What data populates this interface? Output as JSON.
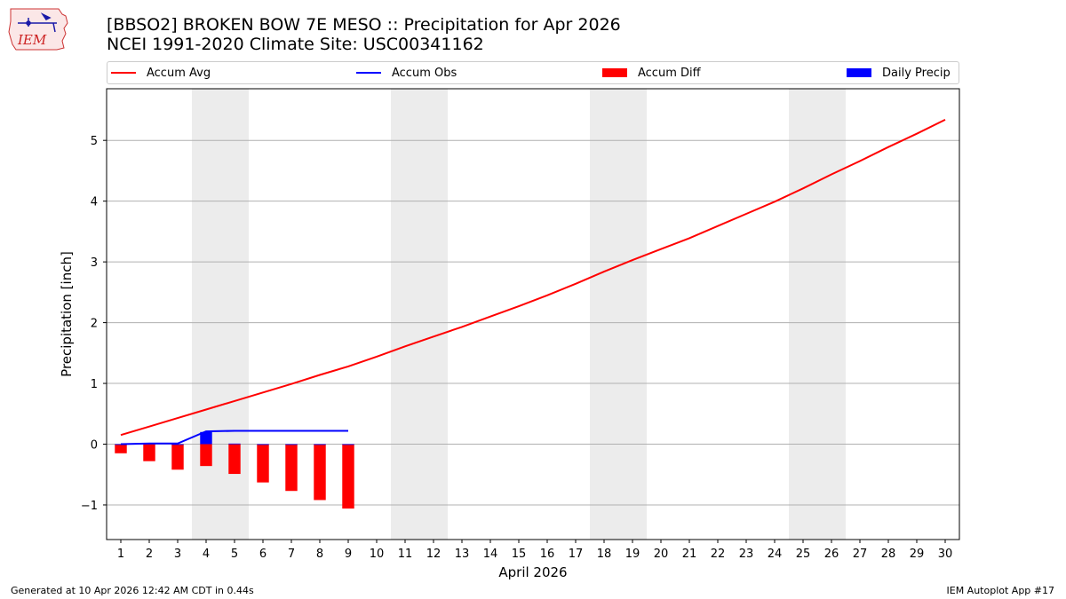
{
  "title": {
    "line1": "[BBSO2] BROKEN BOW 7E MESO :: Precipitation for Apr 2026",
    "line2": "NCEI 1991-2020 Climate Site: USC00341162"
  },
  "logo": {
    "text": "IEM"
  },
  "footer": {
    "left": "Generated at 10 Apr 2026 12:42 AM CDT in 0.44s",
    "right": "IEM Autoplot App #17"
  },
  "colors": {
    "accum_avg": "#ff0000",
    "accum_obs": "#0000ff",
    "accum_diff": "#ff0000",
    "daily_precip": "#0000ff",
    "weekend_shade": "#ececec",
    "grid": "#b0b0b0"
  },
  "chart_data": {
    "type": "line",
    "title": "[BBSO2] BROKEN BOW 7E MESO :: Precipitation for Apr 2026",
    "xlabel": "April 2026",
    "ylabel": "Precipitation [inch]",
    "xlim": [
      0.5,
      30.5
    ],
    "ylim": [
      -1.57,
      5.85
    ],
    "yticks": [
      -1,
      0,
      1,
      2,
      3,
      4,
      5
    ],
    "ytick_labels": [
      "−1",
      "0",
      "1",
      "2",
      "3",
      "4",
      "5"
    ],
    "x": [
      1,
      2,
      3,
      4,
      5,
      6,
      7,
      8,
      9,
      10,
      11,
      12,
      13,
      14,
      15,
      16,
      17,
      18,
      19,
      20,
      21,
      22,
      23,
      24,
      25,
      26,
      27,
      28,
      29,
      30
    ],
    "weekend_spans": [
      [
        3.5,
        5.5
      ],
      [
        10.5,
        12.5
      ],
      [
        17.5,
        19.5
      ],
      [
        24.5,
        26.5
      ]
    ],
    "grid": "y",
    "legend_location": "top",
    "legend": [
      "Accum Avg",
      "Accum Obs",
      "Accum Diff",
      "Daily Precip"
    ],
    "series": [
      {
        "name": "Accum Avg",
        "kind": "line",
        "x": [
          1,
          2,
          3,
          4,
          5,
          6,
          7,
          8,
          9,
          10,
          11,
          12,
          13,
          14,
          15,
          16,
          17,
          18,
          19,
          20,
          21,
          22,
          23,
          24,
          25,
          26,
          27,
          28,
          29,
          30
        ],
        "values": [
          0.15,
          0.29,
          0.43,
          0.57,
          0.71,
          0.85,
          0.99,
          1.14,
          1.28,
          1.44,
          1.61,
          1.77,
          1.93,
          2.1,
          2.27,
          2.45,
          2.64,
          2.84,
          3.03,
          3.21,
          3.39,
          3.59,
          3.79,
          3.99,
          4.21,
          4.44,
          4.66,
          4.89,
          5.11,
          5.34
        ]
      },
      {
        "name": "Accum Obs",
        "kind": "line",
        "x": [
          1,
          2,
          3,
          4,
          5,
          6,
          7,
          8,
          9
        ],
        "values": [
          0.0,
          0.01,
          0.01,
          0.21,
          0.22,
          0.22,
          0.22,
          0.22,
          0.22
        ]
      },
      {
        "name": "Accum Diff",
        "kind": "bar",
        "x": [
          1,
          2,
          3,
          4,
          5,
          6,
          7,
          8,
          9
        ],
        "values": [
          -0.15,
          -0.28,
          -0.42,
          -0.36,
          -0.49,
          -0.63,
          -0.77,
          -0.92,
          -1.06
        ]
      },
      {
        "name": "Daily Precip",
        "kind": "bar",
        "x": [
          1,
          2,
          3,
          4,
          5,
          6,
          7,
          8,
          9
        ],
        "values": [
          0.0,
          0.01,
          0.0,
          0.2,
          0.01,
          0.0,
          0.0,
          0.0,
          0.0
        ]
      }
    ]
  }
}
